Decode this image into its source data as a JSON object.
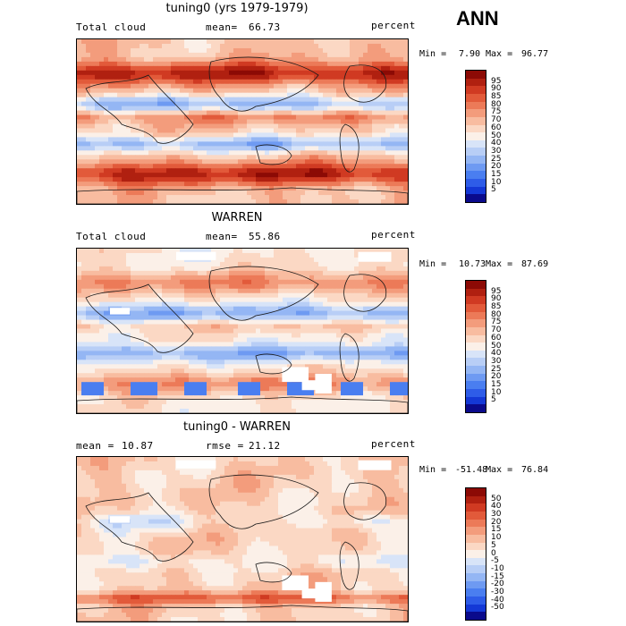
{
  "season": "ANN",
  "colors": {
    "abs_scale": [
      "#0a0a8c",
      "#1438d6",
      "#2e5ce8",
      "#4a7ef0",
      "#6e9af2",
      "#94b6f4",
      "#b8cef6",
      "#d8e4f8",
      "#fbf0e8",
      "#fbd8c4",
      "#f8bca0",
      "#f39c7c",
      "#ec7a58",
      "#e25a3a",
      "#d03a22",
      "#b02010",
      "#8c0a05"
    ],
    "diff_scale": [
      "#0a0a8c",
      "#1438d6",
      "#2e5ce8",
      "#4a7ef0",
      "#6e9af2",
      "#94b6f4",
      "#b8cef6",
      "#d8e4f8",
      "#fbf0e8",
      "#fbd8c4",
      "#f8bca0",
      "#f39c7c",
      "#ec7a58",
      "#e25a3a",
      "#d03a22",
      "#b02010",
      "#8c0a05"
    ]
  },
  "chart_data": [
    {
      "type": "heatmap",
      "title": "tuning0 (yrs 1979-1979)",
      "variable": "Total cloud",
      "stat1_label": "mean=",
      "stat1_value": "66.73",
      "stat2_label": "",
      "stat2_value": "",
      "units": "percent",
      "min_label": "Min =",
      "min_value": "7.90",
      "max_label": "Max =",
      "max_value": "96.77",
      "colorbar_ticks": [
        "95",
        "90",
        "85",
        "80",
        "75",
        "70",
        "60",
        "50",
        "40",
        "30",
        "25",
        "20",
        "15",
        "10",
        "5"
      ],
      "base_level": 62
    },
    {
      "type": "heatmap",
      "title": "WARREN",
      "variable": "Total cloud",
      "stat1_label": "mean=",
      "stat1_value": "55.86",
      "stat2_label": "",
      "stat2_value": "",
      "units": "percent",
      "min_label": "Min =",
      "min_value": "10.73",
      "max_label": "Max =",
      "max_value": "87.69",
      "colorbar_ticks": [
        "95",
        "90",
        "85",
        "80",
        "75",
        "70",
        "60",
        "50",
        "40",
        "30",
        "25",
        "20",
        "15",
        "10",
        "5"
      ],
      "base_level": 52
    },
    {
      "type": "heatmap",
      "title": "tuning0 - WARREN",
      "variable": "",
      "stat1_label": "mean =",
      "stat1_value": "10.87",
      "stat2_label": "rmse =",
      "stat2_value": "21.12",
      "units": "percent",
      "min_label": "Min =",
      "min_value": "-51.48",
      "max_label": "Max =",
      "max_value": "76.84",
      "colorbar_ticks": [
        "50",
        "40",
        "30",
        "20",
        "15",
        "10",
        "5",
        "0",
        "-5",
        "-10",
        "-15",
        "-20",
        "-30",
        "-40",
        "-50"
      ],
      "base_level": 8
    }
  ]
}
